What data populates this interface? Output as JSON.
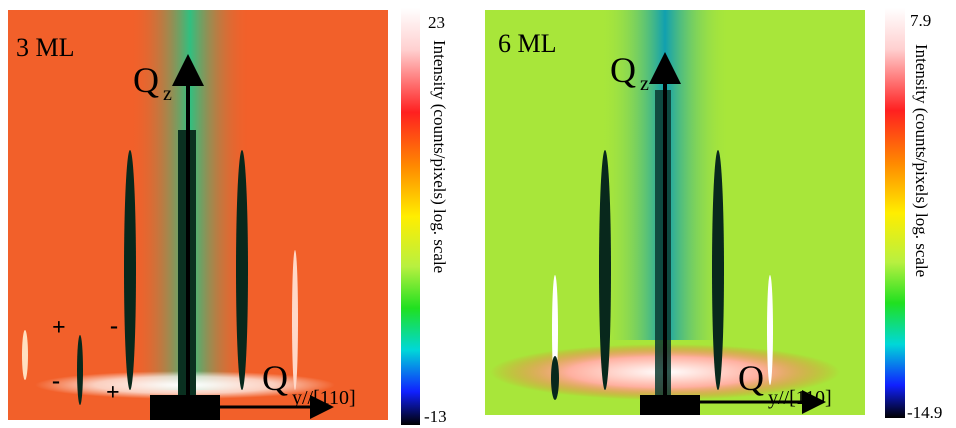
{
  "panels": [
    {
      "label": "3 ML",
      "qz_symbol": "Q",
      "qz_sub": "z",
      "qy_symbol": "Q",
      "qy_sub": "y//[110]",
      "markers": [
        "+",
        "-",
        "-",
        "+"
      ],
      "colorbar": {
        "max": 23,
        "min": -13,
        "title": "Intensity (counts/pixels) log. scale"
      }
    },
    {
      "label": "6 ML",
      "qz_symbol": "Q",
      "qz_sub": "z",
      "qy_symbol": "Q",
      "qy_sub": "y//[110]",
      "colorbar": {
        "max": 7.9,
        "min": -14.9,
        "title": "Intensity (counts/pixels) log. scale"
      }
    }
  ]
}
